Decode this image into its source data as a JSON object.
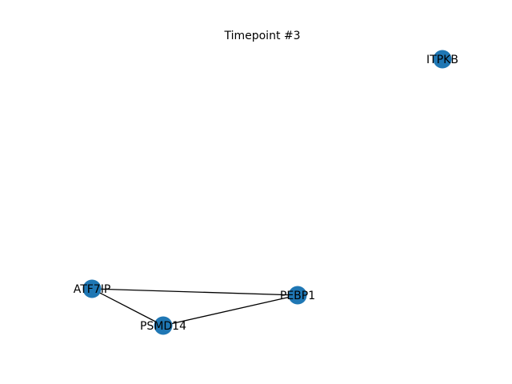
{
  "figure": {
    "title": "Timepoint #3"
  },
  "graph": {
    "node_color": "#1f77b4",
    "edge_color": "#000000",
    "nodes": [
      {
        "id": "ITPKB",
        "label": "ITPKB"
      },
      {
        "id": "ATF7IP",
        "label": "ATF7IP"
      },
      {
        "id": "PEBP1",
        "label": "PEBP1"
      },
      {
        "id": "PSMD14",
        "label": "PSMD14"
      }
    ],
    "edges": [
      {
        "source": "ATF7IP",
        "target": "PEBP1"
      },
      {
        "source": "ATF7IP",
        "target": "PSMD14"
      },
      {
        "source": "PSMD14",
        "target": "PEBP1"
      }
    ]
  }
}
